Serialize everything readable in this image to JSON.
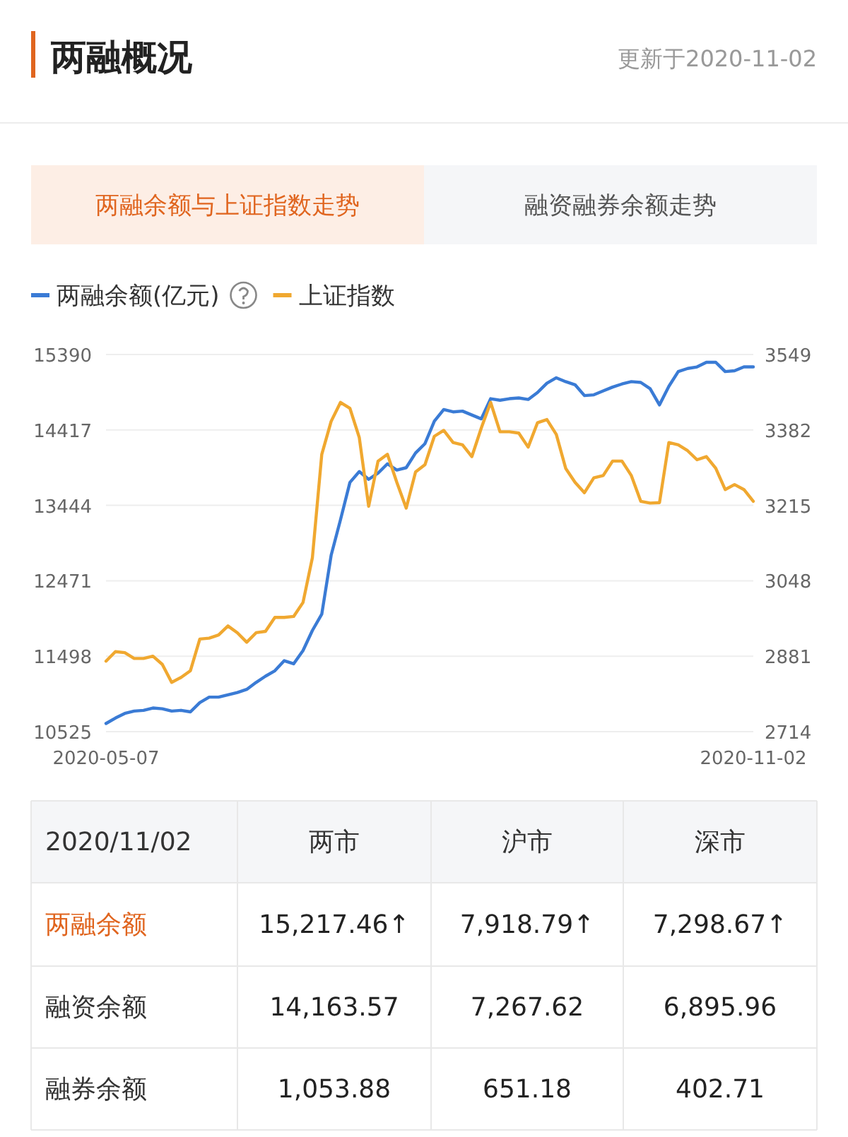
{
  "chart_data": [
    {
      "type": "line",
      "title": "两融概况",
      "subtitle": "更新于2020-11-02",
      "annotations": [
        "两融余额与上证指数走势",
        "融资融券余额走势"
      ],
      "categories": [
        "2020-05-07",
        null,
        null,
        null,
        null,
        null,
        null,
        null,
        null,
        null,
        null,
        null,
        null,
        null,
        null,
        null,
        null,
        null,
        null,
        null,
        null,
        null,
        null,
        null,
        null,
        null,
        null,
        null,
        null,
        null,
        null,
        null,
        null,
        null,
        null,
        null,
        null,
        null,
        null,
        null,
        null,
        null,
        null,
        null,
        null,
        null,
        null,
        null,
        null,
        null,
        null,
        null,
        null,
        null,
        null,
        null,
        null,
        null,
        null,
        null,
        null,
        null,
        null,
        null,
        null,
        null,
        null,
        null,
        null,
        "2020-11-02"
      ],
      "series": [
        {
          "name": "两融余额(亿元)",
          "color": "#3a7bd5",
          "values": [
            10630,
            10700,
            10760,
            10790,
            10800,
            10830,
            10820,
            10790,
            10800,
            10780,
            10900,
            10970,
            10970,
            11000,
            11030,
            11070,
            11160,
            11240,
            11310,
            11440,
            11400,
            11570,
            11830,
            12040,
            12800,
            13260,
            13740,
            13880,
            13780,
            13860,
            13980,
            13900,
            13930,
            14120,
            14240,
            14530,
            14680,
            14650,
            14660,
            14610,
            14560,
            14820,
            14800,
            14820,
            14830,
            14810,
            14900,
            15020,
            15090,
            15040,
            15000,
            14860,
            14870,
            14920,
            14970,
            15010,
            15040,
            15030,
            14950,
            14740,
            14980,
            15170,
            15210,
            15230,
            15290,
            15290,
            15170,
            15180,
            15230,
            15230
          ]
        },
        {
          "name": "上证指数",
          "color": "#f0a830",
          "axis": "y2",
          "values": [
            2870,
            2891,
            2889,
            2876,
            2876,
            2881,
            2863,
            2823,
            2834,
            2849,
            2919,
            2921,
            2928,
            2948,
            2933,
            2912,
            2933,
            2936,
            2967,
            2967,
            2969,
            3000,
            3099,
            3328,
            3401,
            3443,
            3430,
            3365,
            3213,
            3313,
            3328,
            3266,
            3209,
            3289,
            3305,
            3368,
            3381,
            3354,
            3349,
            3323,
            3386,
            3443,
            3378,
            3378,
            3375,
            3344,
            3398,
            3405,
            3372,
            3297,
            3266,
            3243,
            3276,
            3281,
            3313,
            3313,
            3281,
            3224,
            3220,
            3221,
            3354,
            3349,
            3336,
            3316,
            3323,
            3297,
            3250,
            3261,
            3250,
            3224
          ]
        }
      ],
      "ylim": [
        10525,
        15390
      ],
      "yticks": [
        10525,
        11498,
        12471,
        13444,
        14417,
        15390
      ],
      "y2lim": [
        2714,
        3549
      ],
      "y2ticks": [
        2714,
        2881,
        3048,
        3215,
        3382,
        3549
      ],
      "grid": "y",
      "legend": "top left",
      "marker": "none",
      "line_style": "solid"
    },
    {
      "type": "other",
      "categories": [
        "2020/11/02",
        "两市",
        "沪市",
        "深市"
      ],
      "y_categories": [
        "两融余额",
        "融资余额",
        "融券余额"
      ],
      "cell_labels": [
        [
          "15,217.46↑",
          "7,918.79↑",
          "7,298.67↑"
        ],
        [
          "14,163.57",
          "7,267.62",
          "6,895.96"
        ],
        [
          "1,053.88",
          "651.18",
          "402.71"
        ]
      ]
    }
  ]
}
